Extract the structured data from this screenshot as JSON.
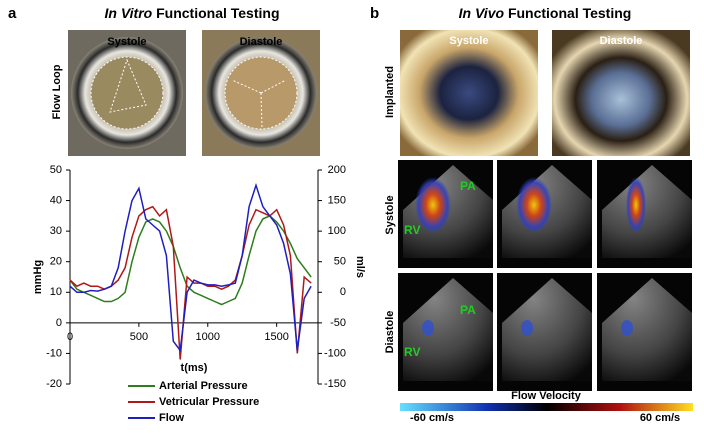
{
  "panel_a": {
    "label": "a",
    "title": [
      "In Vitro",
      "Functional Testing"
    ],
    "row_label": "Flow Loop",
    "image_labels": [
      "Systole",
      "Diastole"
    ]
  },
  "panel_b": {
    "label": "b",
    "title": [
      "In Vivo",
      "Functional Testing"
    ],
    "row_labels": [
      "Implanted",
      "Systole",
      "Diastole"
    ],
    "image_labels": [
      "Systole",
      "Diastole"
    ],
    "echo_labels": {
      "systole": [
        "PA",
        "RV"
      ],
      "diastole": [
        "PA",
        "RV"
      ]
    },
    "colorbar": {
      "title": "Flow Velocity",
      "min_label": "-60 cm/s",
      "max_label": "60 cm/s"
    }
  },
  "chart_data": {
    "type": "line",
    "xlabel": "t(ms)",
    "ylabel": "mmHg",
    "y2label": "ml/s",
    "x": [
      0,
      50,
      100,
      150,
      200,
      250,
      300,
      350,
      400,
      450,
      500,
      550,
      600,
      650,
      700,
      750,
      800,
      850,
      900,
      950,
      1000,
      1050,
      1100,
      1150,
      1200,
      1250,
      1300,
      1350,
      1400,
      1450,
      1500,
      1550,
      1600,
      1650,
      1700,
      1750
    ],
    "xlim": [
      0,
      1800
    ],
    "xticks": [
      0,
      500,
      1000,
      1500
    ],
    "ylim": [
      -20,
      50
    ],
    "yticks": [
      -20,
      -10,
      0,
      10,
      20,
      30,
      40,
      50
    ],
    "y2lim": [
      -150,
      200
    ],
    "y2ticks": [
      -150,
      -100,
      -50,
      0,
      50,
      100,
      150,
      200
    ],
    "series": [
      {
        "name": "Arterial Pressure",
        "color": "#2e7d1e",
        "values": [
          14,
          11,
          10,
          9,
          8,
          7,
          7,
          8,
          10,
          20,
          28,
          33,
          34,
          33,
          30,
          25,
          18,
          12,
          10,
          9,
          8,
          7,
          6,
          7,
          8,
          13,
          22,
          30,
          34,
          35,
          33,
          30,
          26,
          21,
          18,
          15
        ]
      },
      {
        "name": "Vetricular Pressure",
        "color": "#b01818",
        "values": [
          14,
          12,
          13,
          12,
          12,
          11,
          12,
          14,
          18,
          28,
          35,
          37,
          38,
          35,
          37,
          25,
          -12,
          15,
          13,
          13,
          12,
          12,
          11,
          12,
          14,
          22,
          32,
          37,
          36,
          35,
          37,
          32,
          22,
          -10,
          15,
          13
        ]
      },
      {
        "name": "Flow",
        "color": "#1f1fbf",
        "axis": "y2",
        "values": [
          10,
          0,
          0,
          3,
          2,
          5,
          10,
          40,
          100,
          150,
          170,
          120,
          110,
          100,
          60,
          -80,
          -95,
          0,
          20,
          15,
          12,
          12,
          10,
          12,
          15,
          60,
          140,
          175,
          140,
          125,
          110,
          80,
          30,
          -95,
          -10,
          10
        ]
      }
    ]
  }
}
